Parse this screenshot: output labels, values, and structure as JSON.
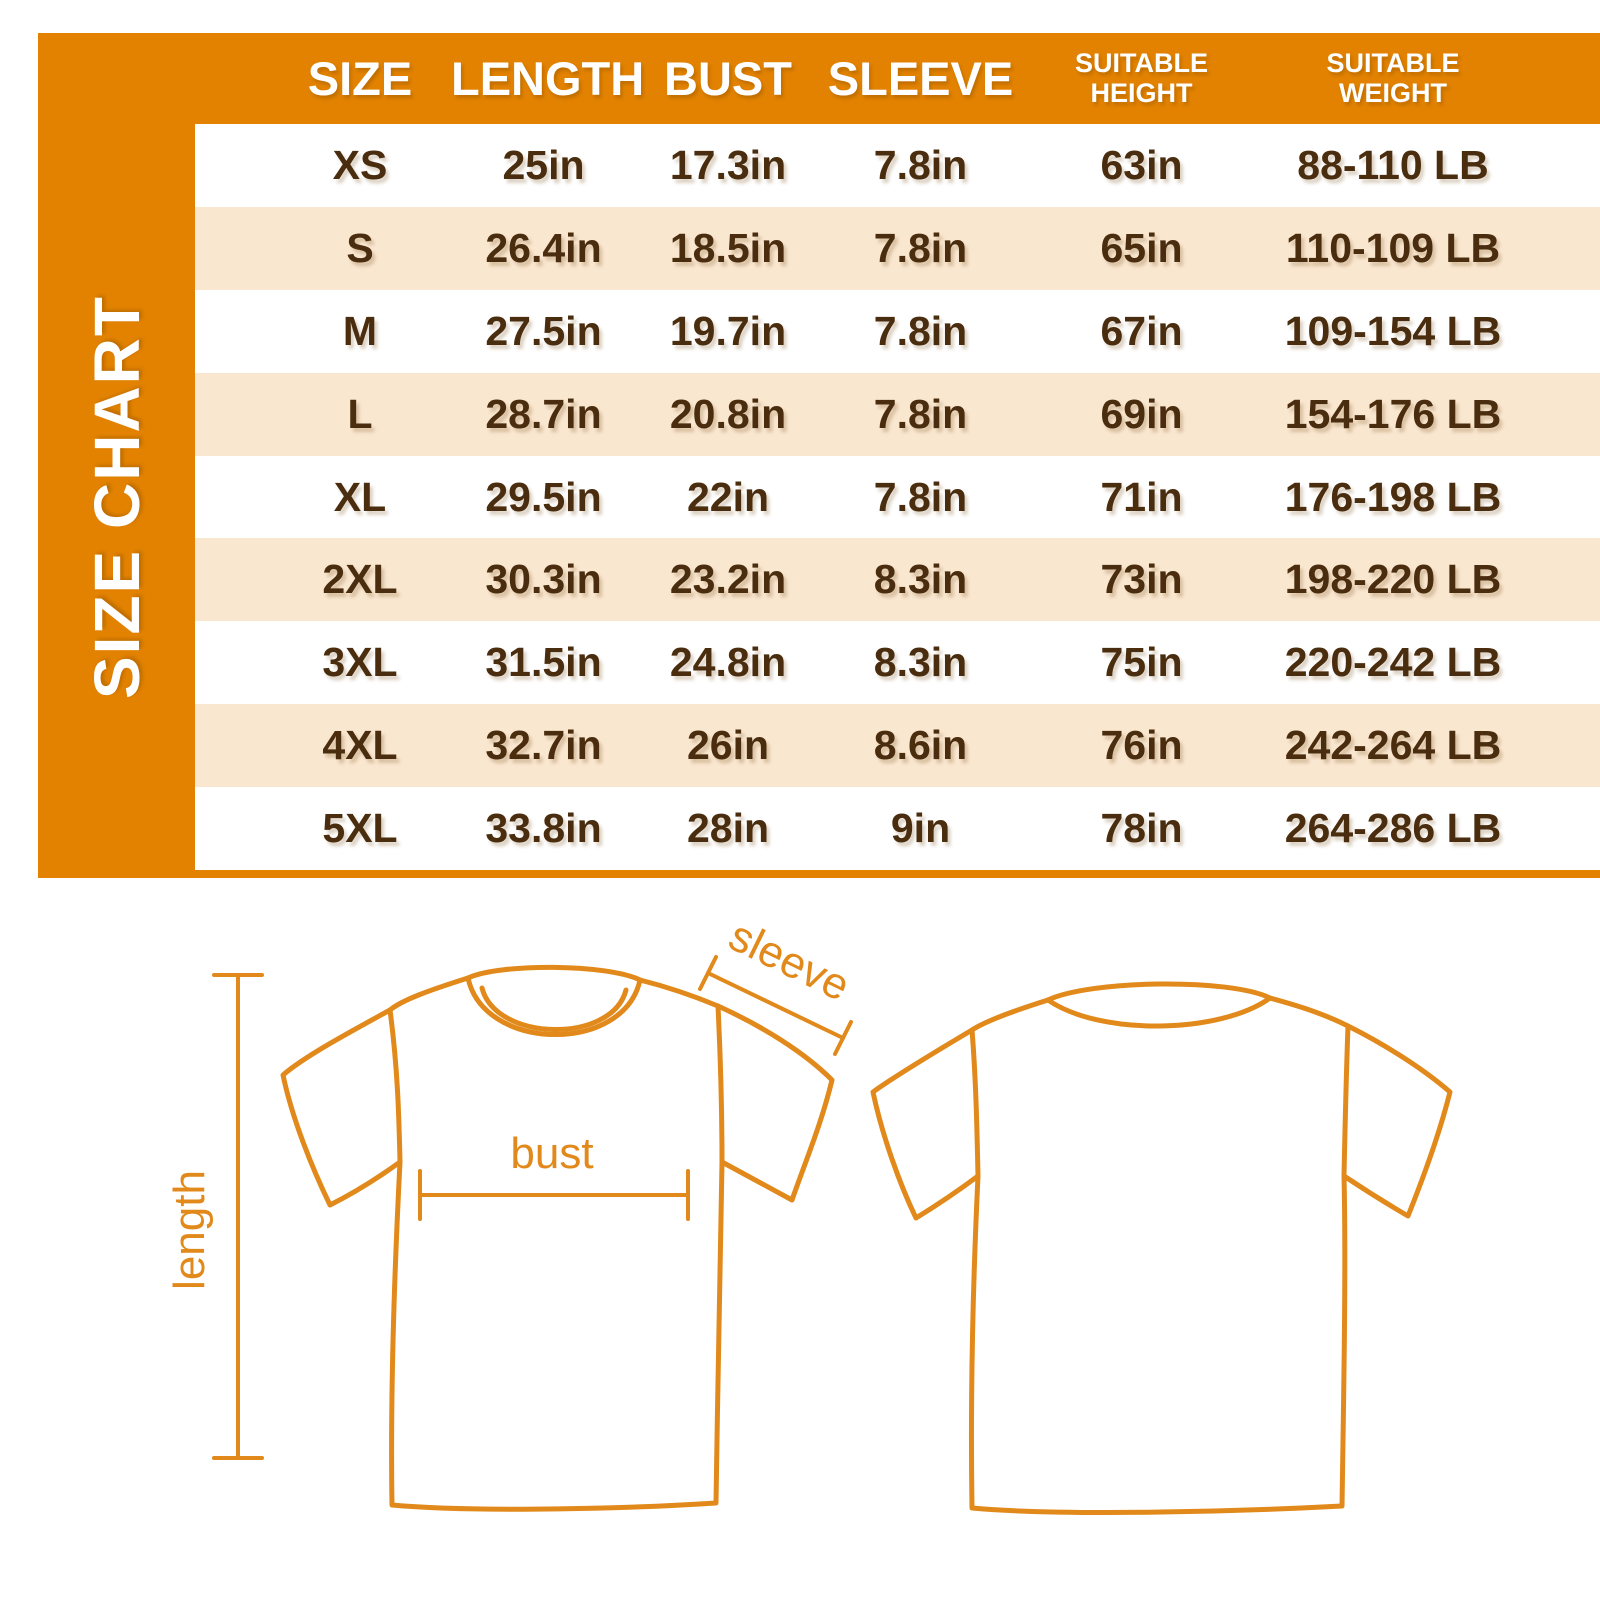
{
  "title": "SIZE CHART",
  "chart_data": {
    "type": "table",
    "title": "SIZE CHART",
    "columns": [
      "SIZE",
      "LENGTH",
      "BUST",
      "SLEEVE",
      "SUITABLE HEIGHT",
      "SUITABLE WEIGHT"
    ],
    "rows": [
      [
        "XS",
        "25in",
        "17.3in",
        "7.8in",
        "63in",
        "88-110 LB"
      ],
      [
        "S",
        "26.4in",
        "18.5in",
        "7.8in",
        "65in",
        "110-109 LB"
      ],
      [
        "M",
        "27.5in",
        "19.7in",
        "7.8in",
        "67in",
        "109-154 LB"
      ],
      [
        "L",
        "28.7in",
        "20.8in",
        "7.8in",
        "69in",
        "154-176 LB"
      ],
      [
        "XL",
        "29.5in",
        "22in",
        "7.8in",
        "71in",
        "176-198 LB"
      ],
      [
        "2XL",
        "30.3in",
        "23.2in",
        "8.3in",
        "73in",
        "198-220 LB"
      ],
      [
        "3XL",
        "31.5in",
        "24.8in",
        "8.3in",
        "75in",
        "220-242 LB"
      ],
      [
        "4XL",
        "32.7in",
        "26in",
        "8.6in",
        "76in",
        "242-264 LB"
      ],
      [
        "5XL",
        "33.8in",
        "28in",
        "9in",
        "78in",
        "264-286 LB"
      ]
    ]
  },
  "diagram": {
    "sleeve_label": "sleeve",
    "bust_label": "bust",
    "length_label": "length"
  },
  "colors": {
    "panel_orange": "#E28200",
    "row_cream": "#FAE7D0",
    "row_white": "#FFFFFF",
    "text_brown": "#4A2D0E",
    "header_text": "#FFFFFF",
    "outline_orange": "#E1891A"
  }
}
